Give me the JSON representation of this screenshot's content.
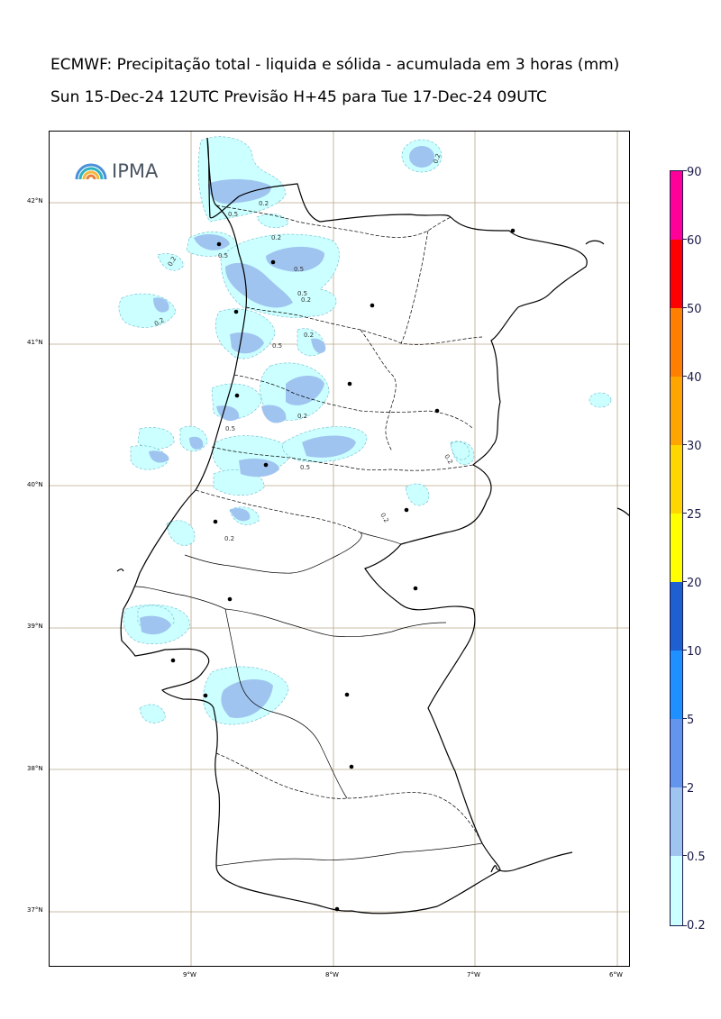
{
  "title": "ECMWF: Precipitação total - liquida e sólida - acumulada em 3 horas (mm)",
  "subtitle": "Sun 15-Dec-24 12UTC Previsão H+45 para Tue 17-Dec-24 09UTC",
  "logo": {
    "text": "IPMA",
    "icon": "rainbow-logo-icon"
  },
  "latitude_labels": [
    "42°N",
    "41°N",
    "40°N",
    "39°N",
    "38°N",
    "37°N"
  ],
  "longitude_labels": [
    "9°W",
    "8°W",
    "7°W",
    "6°W"
  ],
  "contour_labels": [
    "0.2",
    "0.5"
  ],
  "colorbar": {
    "labels": [
      "90",
      "60",
      "50",
      "40",
      "30",
      "25",
      "20",
      "10",
      "5",
      "2",
      "0.5",
      "0.2"
    ],
    "colors": [
      "#ff0099",
      "#ff0000",
      "#ff7f00",
      "#ffa500",
      "#ffd700",
      "#ffff00",
      "#1e5fd1",
      "#1e90ff",
      "#6495ed",
      "#a0c4f0",
      "#ccffff"
    ]
  },
  "colors": {
    "light_precip": "#ccffff",
    "medium_precip": "#a0c4f0",
    "coast": "#000000",
    "grid": "#b8a88a"
  }
}
